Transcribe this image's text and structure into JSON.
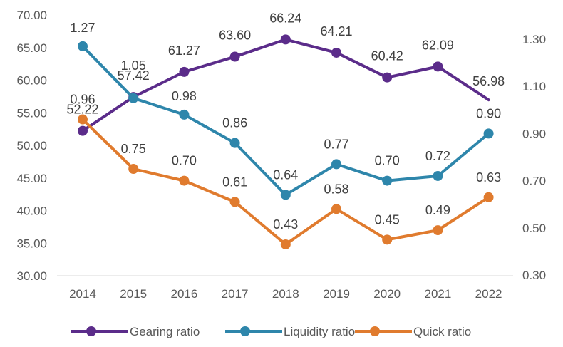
{
  "chart_data": {
    "type": "line",
    "categories": [
      "2014",
      "2015",
      "2016",
      "2017",
      "2018",
      "2019",
      "2020",
      "2021",
      "2022"
    ],
    "series": [
      {
        "name": "Gearing ratio",
        "axis": "left",
        "color": "#5B2C8A",
        "values": [
          52.22,
          57.42,
          61.27,
          63.6,
          66.24,
          64.21,
          60.42,
          62.09,
          56.98
        ],
        "labels": [
          "52.22",
          "57.42",
          "61.27",
          "63.60",
          "66.24",
          "64.21",
          "60.42",
          "62.09",
          "56.98"
        ],
        "last_marker": false
      },
      {
        "name": "Liquidity ratio",
        "axis": "right",
        "color": "#2E86AB",
        "values": [
          1.27,
          1.05,
          0.98,
          0.86,
          0.64,
          0.77,
          0.7,
          0.72,
          0.9
        ],
        "labels": [
          "1.27",
          "1.05",
          "0.98",
          "0.86",
          "0.64",
          "0.77",
          "0.70",
          "0.72",
          "0.90"
        ],
        "last_marker": true
      },
      {
        "name": "Quick ratio",
        "axis": "right",
        "color": "#E07B2E",
        "values": [
          0.96,
          0.75,
          0.7,
          0.61,
          0.43,
          0.58,
          0.45,
          0.49,
          0.63
        ],
        "labels": [
          "0.96",
          "0.75",
          "0.70",
          "0.61",
          "0.43",
          "0.58",
          "0.45",
          "0.49",
          "0.63"
        ],
        "last_marker": true
      }
    ],
    "left_axis": {
      "min": 30,
      "max": 70,
      "ticks": [
        "30.00",
        "35.00",
        "40.00",
        "45.00",
        "50.00",
        "55.00",
        "60.00",
        "65.00",
        "70.00"
      ]
    },
    "right_axis": {
      "min": 0.3,
      "max": 1.4,
      "ticks": [
        "0.30",
        "0.50",
        "0.70",
        "0.90",
        "1.10",
        "1.30"
      ]
    },
    "legend_position": "bottom",
    "grid": false
  }
}
